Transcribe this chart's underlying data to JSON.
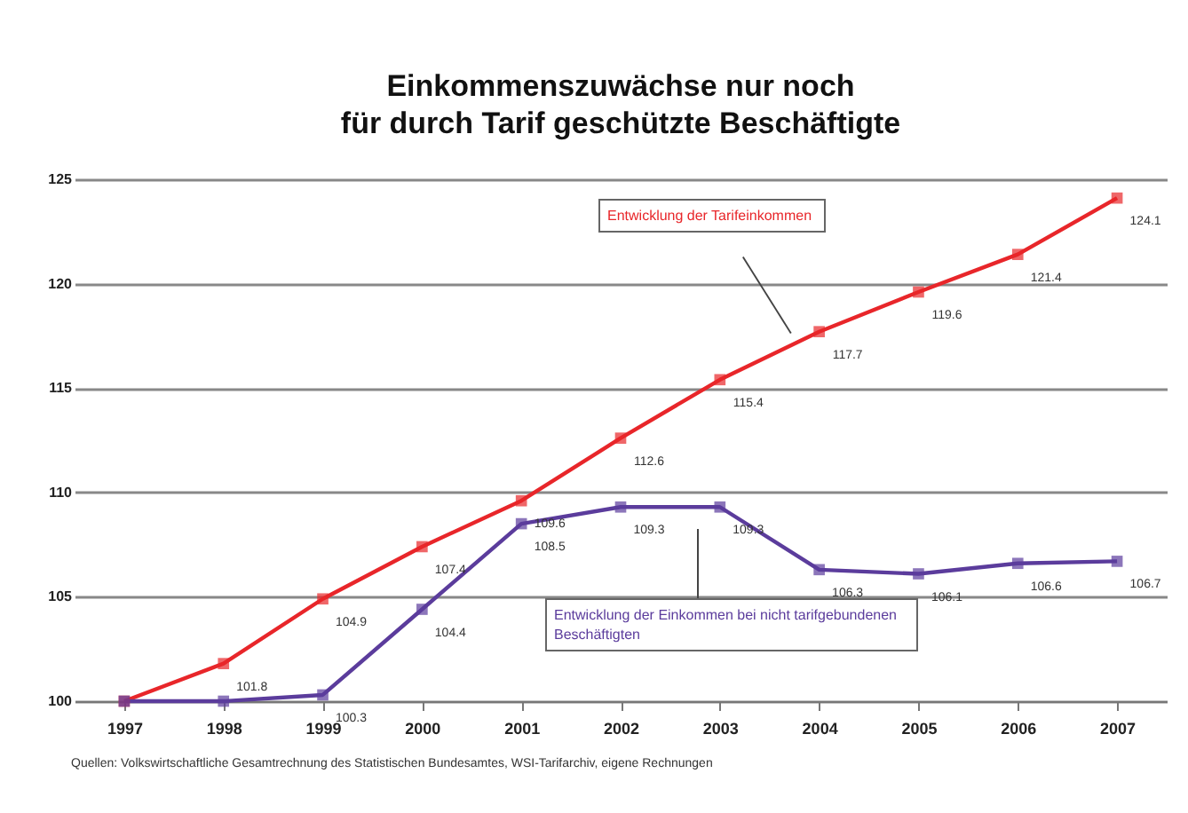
{
  "chart_data": {
    "type": "line",
    "title": "Einkommenszuwächse nur noch\nfür durch Tarif geschützte Beschäftigte",
    "categories": [
      "1997",
      "1998",
      "1999",
      "2000",
      "2001",
      "2002",
      "2003",
      "2004",
      "2005",
      "2006",
      "2007"
    ],
    "series": [
      {
        "name": "Entwicklung der Tarifeinkommen",
        "color": "#e8262a",
        "values": [
          100,
          101.8,
          104.9,
          107.4,
          109.6,
          112.6,
          115.4,
          117.7,
          119.6,
          121.4,
          124.1
        ],
        "value_labels": [
          null,
          "101.8",
          "104.9",
          "107.4",
          "109.6",
          "112.6",
          "115.4",
          "117.7",
          "119.6",
          "121.4",
          "124.1"
        ]
      },
      {
        "name": "Entwicklung der Einkommen bei nicht tarifgebundenen Beschäftigten",
        "color": "#5b3c9c",
        "values": [
          100,
          100,
          100.3,
          104.4,
          108.5,
          109.3,
          109.3,
          106.3,
          106.1,
          106.6,
          106.7
        ],
        "value_labels": [
          null,
          null,
          "100.3",
          "104.4",
          "108.5",
          "109.3",
          "109.3",
          "106.3",
          "106.1",
          "106.6",
          "106.7"
        ]
      }
    ],
    "ylim": [
      100,
      125
    ],
    "yticks": [
      100,
      105,
      110,
      115,
      120,
      125
    ],
    "grid": "y",
    "marker": "square",
    "line_style": "solid",
    "legend": false,
    "annotations": [
      "Quellen: Volkswirtschaftliche Gesamtrechnung des Statistischen Bundesamtes, WSI-Tarifarchiv, eigene Rechnungen"
    ]
  }
}
